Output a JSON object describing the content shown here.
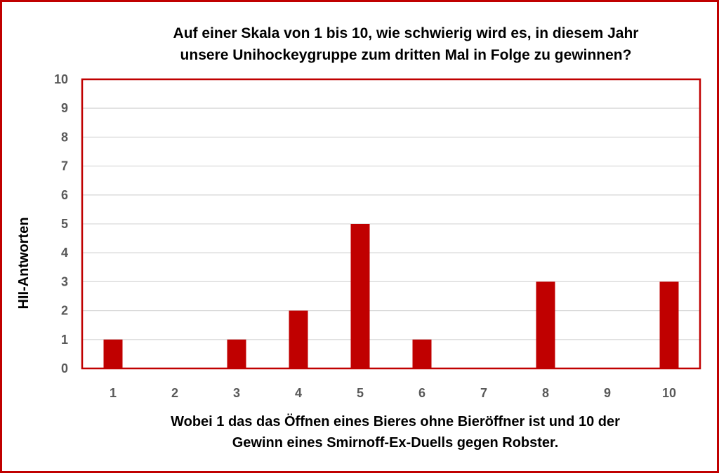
{
  "chart_data": {
    "type": "bar",
    "title_lines": [
      "Auf einer Skala von 1 bis 10, wie schwierig wird es, in diesem Jahr",
      "unsere Unihockeygruppe zum dritten Mal in Folge zu gewinnen?"
    ],
    "xlabel_lines": [
      "Wobei 1 das das Öffnen eines Bieres ohne Bieröffner ist und 10 der",
      "Gewinn eines Smirnoff-Ex-Duells gegen Robster."
    ],
    "ylabel": "HII-Antworten",
    "categories": [
      "1",
      "2",
      "3",
      "4",
      "5",
      "6",
      "7",
      "8",
      "9",
      "10"
    ],
    "values": [
      1,
      0,
      1,
      2,
      5,
      1,
      0,
      3,
      0,
      3
    ],
    "ylim": [
      0,
      10
    ],
    "yticks": [
      "0",
      "1",
      "2",
      "3",
      "4",
      "5",
      "6",
      "7",
      "8",
      "9",
      "10"
    ],
    "grid": true,
    "legend": "none",
    "colors": {
      "bar": "#c00000",
      "plot_border": "#c00000",
      "frame_border": "#c00000",
      "grid": "#d9d9d9"
    }
  }
}
